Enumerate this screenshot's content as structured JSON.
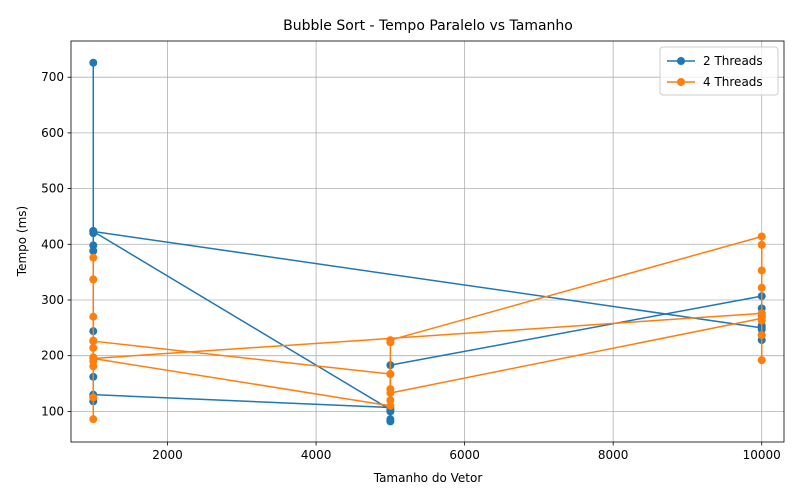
{
  "chart_data": {
    "type": "line",
    "title": "Bubble Sort - Tempo Paralelo vs Tamanho",
    "xlabel": "Tamanho do Vetor",
    "ylabel": "Tempo (ms)",
    "xlim": [
      700,
      10300
    ],
    "ylim": [
      45,
      765
    ],
    "xticks": [
      2000,
      4000,
      6000,
      8000,
      10000
    ],
    "yticks": [
      100,
      200,
      300,
      400,
      500,
      600,
      700
    ],
    "grid": true,
    "legend_position": "top-right",
    "series": [
      {
        "name": "2 Threads",
        "color": "#1f77b4",
        "points": [
          [
            1000,
            726
          ],
          [
            1000,
            424
          ],
          [
            1000,
            420
          ],
          [
            1000,
            398
          ],
          [
            1000,
            388
          ],
          [
            1000,
            244
          ],
          [
            1000,
            162
          ],
          [
            1000,
            125
          ],
          [
            1000,
            118
          ],
          [
            1000,
            130
          ],
          [
            5000,
            107
          ],
          [
            5000,
            100
          ],
          [
            5000,
            86
          ],
          [
            5000,
            82
          ],
          [
            5000,
            183
          ],
          [
            10000,
            307
          ],
          [
            10000,
            285
          ],
          [
            10000,
            271
          ],
          [
            10000,
            254
          ],
          [
            10000,
            247
          ],
          [
            10000,
            237
          ],
          [
            10000,
            228
          ],
          [
            10000,
            250
          ],
          [
            1000,
            423
          ],
          [
            5000,
            103
          ]
        ]
      },
      {
        "name": "4 Threads",
        "color": "#ff7f0e",
        "points": [
          [
            1000,
            86
          ],
          [
            1000,
            125
          ],
          [
            1000,
            181
          ],
          [
            1000,
            190
          ],
          [
            1000,
            197
          ],
          [
            1000,
            214
          ],
          [
            1000,
            227
          ],
          [
            1000,
            270
          ],
          [
            1000,
            337
          ],
          [
            1000,
            376
          ],
          [
            1000,
            226
          ],
          [
            5000,
            167
          ],
          [
            5000,
            133
          ],
          [
            10000,
            267
          ],
          [
            10000,
            192
          ],
          [
            10000,
            237
          ],
          [
            10000,
            263
          ],
          [
            10000,
            276
          ],
          [
            10000,
            322
          ],
          [
            10000,
            353
          ],
          [
            10000,
            399
          ],
          [
            10000,
            414
          ],
          [
            5000,
            228
          ],
          [
            5000,
            224
          ],
          [
            5000,
            167
          ],
          [
            5000,
            140
          ],
          [
            5000,
            120
          ],
          [
            5000,
            110
          ],
          [
            1000,
            195
          ],
          [
            10000,
            276
          ]
        ]
      }
    ]
  }
}
